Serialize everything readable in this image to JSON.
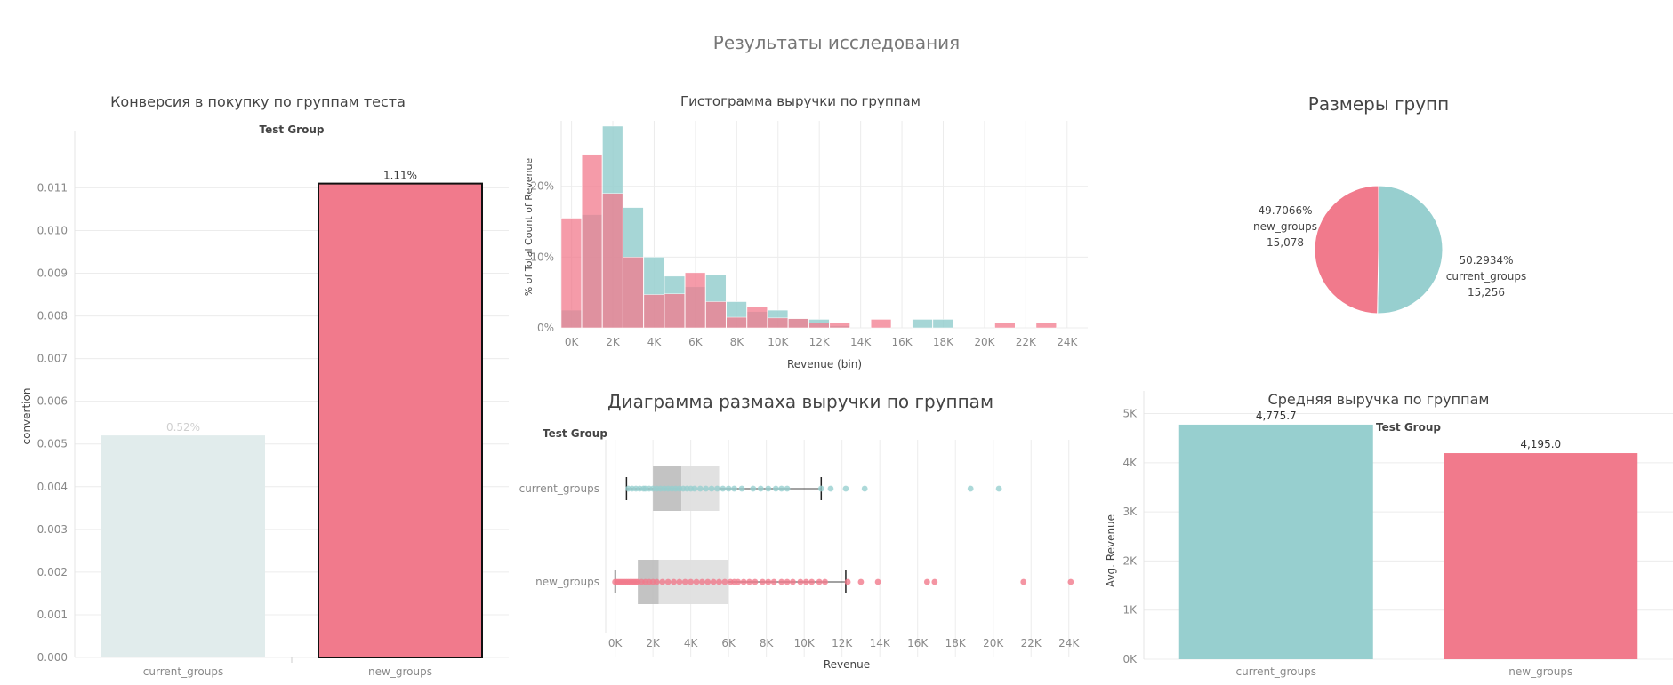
{
  "dashboard_title": "Результаты исследования",
  "colors": {
    "current": "#97cfcf",
    "new": "#f17a8c",
    "conversion_current": "#e1ecec"
  },
  "chart_data": [
    {
      "id": "conversion",
      "type": "bar",
      "title": "Конверсия в покупку по группам теста",
      "header": "Test Group",
      "ylabel": "convertion",
      "categories": [
        "current_groups",
        "new_groups"
      ],
      "values": [
        0.0052,
        0.0111
      ],
      "value_labels": [
        "0.52%",
        "1.11%"
      ],
      "ylim": [
        0,
        0.0113
      ],
      "yticks": [
        "0.000",
        "0.001",
        "0.002",
        "0.003",
        "0.004",
        "0.005",
        "0.006",
        "0.007",
        "0.008",
        "0.009",
        "0.010",
        "0.011"
      ],
      "grid": true
    },
    {
      "id": "histogram",
      "type": "bar",
      "title": "Гистограмма выручки по группам",
      "xlabel": "Revenue (bin)",
      "ylabel": "% of Total Count of Revenue",
      "bin_width": 1000,
      "xlim": [
        -500,
        25000
      ],
      "ylim": [
        0,
        0.285
      ],
      "xticks": [
        "0K",
        "2K",
        "4K",
        "6K",
        "8K",
        "10K",
        "12K",
        "14K",
        "16K",
        "18K",
        "20K",
        "22K",
        "24K"
      ],
      "yticks": [
        "0%",
        "10%",
        "20%"
      ],
      "grid": true,
      "series": [
        {
          "name": "current_groups",
          "x": [
            0,
            1,
            2,
            3,
            4,
            5,
            6,
            7,
            8,
            9,
            10,
            11,
            12,
            13,
            17,
            18
          ],
          "values": [
            0.025,
            0.16,
            0.285,
            0.17,
            0.1,
            0.073,
            0.058,
            0.075,
            0.037,
            0.023,
            0.025,
            0.013,
            0.012,
            0.003,
            0.012,
            0.012
          ]
        },
        {
          "name": "new_groups",
          "x": [
            0,
            1,
            2,
            3,
            4,
            5,
            6,
            7,
            8,
            9,
            10,
            11,
            12,
            13,
            15,
            21,
            23
          ],
          "values": [
            0.155,
            0.245,
            0.19,
            0.1,
            0.047,
            0.048,
            0.078,
            0.037,
            0.015,
            0.03,
            0.014,
            0.013,
            0.007,
            0.007,
            0.012,
            0.007,
            0.007
          ]
        }
      ]
    },
    {
      "id": "group_sizes",
      "type": "pie",
      "title": "Размеры групп",
      "slices": [
        {
          "name": "new_groups",
          "value": 15078,
          "percent": "49.7066%",
          "label": "15,078"
        },
        {
          "name": "current_groups",
          "value": 15256,
          "percent": "50.2934%",
          "label": "15,256"
        }
      ]
    },
    {
      "id": "boxplot",
      "type": "scatter",
      "title": "Диаграмма размаха выручки по группам",
      "header": "Test Group",
      "xlabel": "Revenue",
      "xlim": [
        -500,
        25000
      ],
      "xticks": [
        "0K",
        "2K",
        "4K",
        "6K",
        "8K",
        "10K",
        "12K",
        "14K",
        "16K",
        "18K",
        "20K",
        "22K",
        "24K"
      ],
      "grid": true,
      "series": [
        {
          "name": "current_groups",
          "whisker_low": 600,
          "q1": 2000,
          "median": 3500,
          "q3": 5500,
          "whisker_high": 10900,
          "points": [
            700,
            900,
            1100,
            1300,
            1500,
            1600,
            1800,
            2000,
            2200,
            2400,
            2600,
            2800,
            3000,
            3200,
            3400,
            3600,
            3800,
            4000,
            4200,
            4500,
            4800,
            5100,
            5400,
            5700,
            6000,
            6300,
            6700,
            7300,
            7700,
            8100,
            8500,
            8800,
            9100,
            10900,
            11400,
            12200,
            13200,
            18800,
            20300
          ]
        },
        {
          "name": "new_groups",
          "whisker_low": 0,
          "q1": 1200,
          "median": 2300,
          "q3": 6000,
          "whisker_high": 12200,
          "points": [
            0,
            100,
            200,
            300,
            400,
            500,
            600,
            700,
            800,
            900,
            1000,
            1100,
            1200,
            1400,
            1600,
            1800,
            2000,
            2200,
            2500,
            2800,
            3100,
            3400,
            3700,
            4000,
            4300,
            4600,
            4900,
            5200,
            5500,
            5800,
            6100,
            6300,
            6500,
            6800,
            7100,
            7400,
            7800,
            8100,
            8400,
            8800,
            9100,
            9400,
            9800,
            10100,
            10400,
            10800,
            11100,
            12300,
            13000,
            13900,
            16500,
            16900,
            21600,
            24100
          ]
        }
      ]
    },
    {
      "id": "avg_revenue",
      "type": "bar",
      "title": "Средняя выручка по группам",
      "header": "Test Group",
      "ylabel": "Avg. Revenue",
      "categories": [
        "current_groups",
        "new_groups"
      ],
      "values": [
        4775.7,
        4195.0
      ],
      "value_labels": [
        "4,775.7",
        "4,195.0"
      ],
      "ylim": [
        0,
        5100
      ],
      "yticks": [
        "0K",
        "1K",
        "2K",
        "3K",
        "4K",
        "5K"
      ],
      "grid": true
    }
  ]
}
